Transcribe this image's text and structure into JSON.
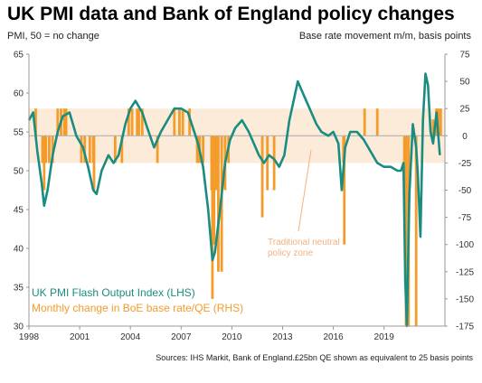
{
  "title": "UK PMI data and Bank of England policy changes",
  "subtitle_left": "PMI, 50 = no change",
  "subtitle_right": "Base rate movement m/m, basis points",
  "source": "Sources: IHS Markit,  Bank of England.£25bn  QE shown as equivalent to 25 basis points",
  "colors": {
    "pmi": "#1a8c80",
    "boe": "#f39c2b",
    "zone": "#fdebd9",
    "neutral": "#b0b0b0",
    "axis": "#999999"
  },
  "chart_data": {
    "type": "line+bar",
    "xlim": [
      1998,
      2022.6
    ],
    "x_ticks": [
      "1998",
      "2001",
      "2004",
      "2007",
      "2010",
      "2013",
      "2016",
      "2019"
    ],
    "y_left": {
      "lim": [
        30,
        65
      ],
      "ticks": [
        "65",
        "60",
        "55",
        "50",
        "45",
        "40",
        "35",
        "30"
      ]
    },
    "y_right": {
      "lim": [
        -175,
        75
      ],
      "ticks": [
        "75",
        "50",
        "25",
        "0",
        "-25",
        "-50",
        "-75",
        "-100",
        "-125",
        "-150",
        "-175"
      ]
    },
    "neutral_zone": {
      "rhs_range": [
        -25,
        25
      ],
      "label_lines": [
        "Traditional neutral",
        "policy zone"
      ]
    },
    "series": [
      {
        "name": "UK PMI Flash Output Index (LHS)",
        "axis": "left",
        "kind": "line",
        "points": [
          [
            1998.0,
            56.5
          ],
          [
            1998.25,
            57.5
          ],
          [
            1998.5,
            52.5
          ],
          [
            1998.75,
            48.5
          ],
          [
            1998.9,
            45.5
          ],
          [
            1999.1,
            47.5
          ],
          [
            1999.4,
            52.0
          ],
          [
            1999.7,
            55.0
          ],
          [
            2000.0,
            57.0
          ],
          [
            2000.4,
            57.5
          ],
          [
            2000.8,
            54.5
          ],
          [
            2001.2,
            53.0
          ],
          [
            2001.5,
            50.5
          ],
          [
            2001.8,
            47.5
          ],
          [
            2002.0,
            47.0
          ],
          [
            2002.3,
            50.0
          ],
          [
            2002.7,
            52.0
          ],
          [
            2003.0,
            51.0
          ],
          [
            2003.3,
            52.0
          ],
          [
            2003.7,
            56.0
          ],
          [
            2004.0,
            58.0
          ],
          [
            2004.3,
            59.0
          ],
          [
            2004.7,
            57.5
          ],
          [
            2005.0,
            55.5
          ],
          [
            2005.4,
            53.0
          ],
          [
            2005.8,
            55.0
          ],
          [
            2006.2,
            56.5
          ],
          [
            2006.6,
            58.0
          ],
          [
            2007.0,
            58.0
          ],
          [
            2007.4,
            57.5
          ],
          [
            2007.7,
            55.5
          ],
          [
            2008.0,
            53.5
          ],
          [
            2008.3,
            50.5
          ],
          [
            2008.6,
            45.0
          ],
          [
            2008.85,
            38.5
          ],
          [
            2009.0,
            39.5
          ],
          [
            2009.3,
            45.0
          ],
          [
            2009.6,
            51.0
          ],
          [
            2009.9,
            54.0
          ],
          [
            2010.2,
            55.5
          ],
          [
            2010.6,
            56.5
          ],
          [
            2011.0,
            55.0
          ],
          [
            2011.3,
            53.5
          ],
          [
            2011.6,
            52.0
          ],
          [
            2011.9,
            51.0
          ],
          [
            2012.2,
            52.0
          ],
          [
            2012.5,
            51.5
          ],
          [
            2012.8,
            50.5
          ],
          [
            2013.1,
            52.0
          ],
          [
            2013.4,
            56.5
          ],
          [
            2013.7,
            59.5
          ],
          [
            2013.9,
            61.5
          ],
          [
            2014.2,
            60.0
          ],
          [
            2014.6,
            58.0
          ],
          [
            2015.0,
            56.0
          ],
          [
            2015.3,
            55.0
          ],
          [
            2015.7,
            54.5
          ],
          [
            2016.0,
            55.0
          ],
          [
            2016.3,
            53.5
          ],
          [
            2016.5,
            47.5
          ],
          [
            2016.7,
            53.0
          ],
          [
            2017.0,
            55.0
          ],
          [
            2017.4,
            55.0
          ],
          [
            2017.8,
            54.0
          ],
          [
            2018.2,
            52.5
          ],
          [
            2018.6,
            51.0
          ],
          [
            2019.0,
            50.5
          ],
          [
            2019.4,
            50.5
          ],
          [
            2019.8,
            50.0
          ],
          [
            2020.0,
            50.0
          ],
          [
            2020.15,
            51.0
          ],
          [
            2020.25,
            36.0
          ],
          [
            2020.35,
            30.0
          ],
          [
            2020.5,
            47.0
          ],
          [
            2020.7,
            56.0
          ],
          [
            2020.9,
            53.0
          ],
          [
            2021.0,
            49.5
          ],
          [
            2021.15,
            41.5
          ],
          [
            2021.3,
            56.5
          ],
          [
            2021.45,
            62.5
          ],
          [
            2021.6,
            61.0
          ],
          [
            2021.75,
            55.0
          ],
          [
            2021.9,
            53.5
          ],
          [
            2022.1,
            57.5
          ],
          [
            2022.3,
            52.0
          ]
        ]
      },
      {
        "name": "Monthly change in BoE base rate/QE (RHS)",
        "axis": "right",
        "kind": "bar",
        "points": [
          [
            1998.4,
            25
          ],
          [
            1998.8,
            -25
          ],
          [
            1998.9,
            -50
          ],
          [
            1999.0,
            -25
          ],
          [
            1999.2,
            -25
          ],
          [
            1999.4,
            -25
          ],
          [
            1999.7,
            25
          ],
          [
            1999.9,
            25
          ],
          [
            2000.1,
            25
          ],
          [
            2000.2,
            25
          ],
          [
            2001.1,
            -25
          ],
          [
            2001.3,
            -25
          ],
          [
            2001.6,
            -25
          ],
          [
            2001.8,
            -25
          ],
          [
            2001.85,
            -50
          ],
          [
            2003.1,
            -25
          ],
          [
            2003.5,
            -25
          ],
          [
            2003.9,
            25
          ],
          [
            2004.1,
            25
          ],
          [
            2004.4,
            25
          ],
          [
            2004.5,
            25
          ],
          [
            2004.7,
            25
          ],
          [
            2005.6,
            -25
          ],
          [
            2006.6,
            25
          ],
          [
            2006.9,
            25
          ],
          [
            2007.1,
            25
          ],
          [
            2007.5,
            25
          ],
          [
            2007.95,
            -25
          ],
          [
            2008.1,
            -25
          ],
          [
            2008.3,
            -25
          ],
          [
            2008.8,
            -50
          ],
          [
            2008.85,
            -150
          ],
          [
            2008.95,
            -100
          ],
          [
            2009.0,
            -50
          ],
          [
            2009.1,
            -50
          ],
          [
            2009.2,
            -125
          ],
          [
            2009.4,
            -125
          ],
          [
            2009.6,
            -50
          ],
          [
            2009.8,
            -25
          ],
          [
            2011.8,
            -75
          ],
          [
            2012.1,
            -50
          ],
          [
            2012.5,
            -50
          ],
          [
            2016.6,
            -25
          ],
          [
            2016.65,
            -100
          ],
          [
            2017.85,
            25
          ],
          [
            2018.6,
            25
          ],
          [
            2020.2,
            -50
          ],
          [
            2020.25,
            -15
          ],
          [
            2020.3,
            -175
          ],
          [
            2020.45,
            -175
          ],
          [
            2020.9,
            -175
          ],
          [
            2021.9,
            15
          ],
          [
            2022.1,
            25
          ],
          [
            2022.2,
            25
          ],
          [
            2022.35,
            25
          ]
        ]
      }
    ]
  }
}
